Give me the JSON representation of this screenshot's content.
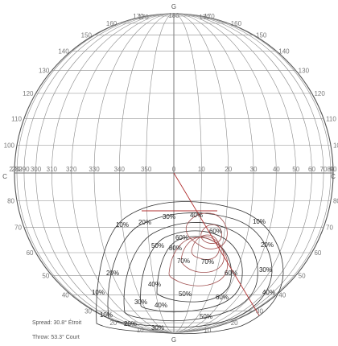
{
  "top_label": "G",
  "bottom_label": "G",
  "left_label": "C",
  "right_label": "C",
  "vertical_angle_labels": {
    "left": [
      "180",
      "170",
      "160",
      "150",
      "140",
      "130",
      "120",
      "110",
      "100",
      "90",
      "80",
      "70",
      "60",
      "50",
      "40",
      "30",
      "20",
      "10",
      "0"
    ],
    "right": [
      "180",
      "170",
      "160",
      "150",
      "140",
      "130",
      "120",
      "110",
      "100",
      "90",
      "80",
      "70",
      "60",
      "50",
      "40",
      "30",
      "20",
      "10",
      "0"
    ]
  },
  "horizontal_angle_labels": [
    "270",
    "280",
    "290",
    "300",
    "310",
    "320",
    "330",
    "340",
    "350",
    "0",
    "10",
    "20",
    "30",
    "40",
    "50",
    "60",
    "70",
    "80",
    "90"
  ],
  "top_labels": [
    "170",
    "180",
    "170"
  ],
  "contour_labels": [
    {
      "text": "10%",
      "id": "c10a"
    },
    {
      "text": "20%",
      "id": "c20a"
    },
    {
      "text": "30%",
      "id": "c30a"
    },
    {
      "text": "40%",
      "id": "c40a"
    },
    {
      "text": "10%",
      "id": "c10b"
    },
    {
      "text": "60%",
      "id": "c60a"
    },
    {
      "text": "60%",
      "id": "c60b"
    },
    {
      "text": "50%",
      "id": "c50a"
    },
    {
      "text": "20%",
      "id": "c20b"
    },
    {
      "text": "80%",
      "id": "c80a"
    },
    {
      "text": "70%",
      "id": "c70a"
    },
    {
      "text": "70%",
      "id": "c70b"
    },
    {
      "text": "30%",
      "id": "c30b"
    },
    {
      "text": "20%",
      "id": "c20c"
    },
    {
      "text": "60%",
      "id": "c60c"
    },
    {
      "text": "40%",
      "id": "c40b"
    },
    {
      "text": "10%",
      "id": "c10c"
    },
    {
      "text": "50%",
      "id": "c50b"
    },
    {
      "text": "40%",
      "id": "c40c"
    },
    {
      "text": "30%",
      "id": "c30c"
    },
    {
      "text": "60%",
      "id": "c60d"
    },
    {
      "text": "10%",
      "id": "c10d"
    },
    {
      "text": "20%",
      "id": "c20d"
    },
    {
      "text": "40%",
      "id": "c40d"
    },
    {
      "text": "50%",
      "id": "c50c"
    },
    {
      "text": "30%",
      "id": "c30d"
    }
  ],
  "info": {
    "spread": "Spread:  30.8° Étroit",
    "throw": "Throw:  53.3° Court"
  }
}
